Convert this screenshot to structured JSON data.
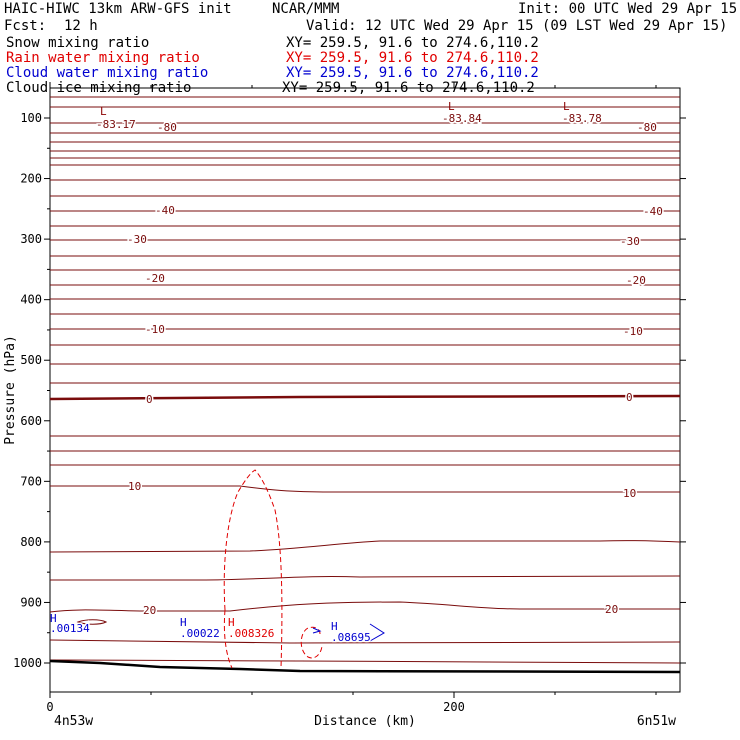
{
  "header": {
    "model": "HAIC-HIWC 13km ARW-GFS init",
    "org": "NCAR/MMM",
    "init": "Init: 00 UTC Wed 29 Apr 15",
    "fcst_label": "Fcst:",
    "fcst_value": "12 h",
    "valid": "Valid: 12 UTC Wed 29 Apr 15 (09 LST Wed 29 Apr 15)"
  },
  "fields": [
    {
      "name": "Snow mixing ratio",
      "xy": "XY= 259.5, 91.6 to 274.6,110.2",
      "color": "#000000"
    },
    {
      "name": "Rain water mixing ratio",
      "xy": "XY= 259.5, 91.6 to 274.6,110.2",
      "color": "#e00000"
    },
    {
      "name": "Cloud water mixing ratio",
      "xy": "XY= 259.5, 91.6 to 274.6,110.2",
      "color": "#0000d0"
    },
    {
      "name": "Cloud ice mixing ratio",
      "xy": "XY= 259.5, 91.6 to 274.6,110.2",
      "color": "#000000"
    }
  ],
  "chart_data": {
    "type": "line",
    "xlabel": "Distance (km)",
    "ylabel": "Pressure (hPa)",
    "x_ticks": [
      "0",
      "200"
    ],
    "x_tick_values": [
      0,
      200
    ],
    "y_ticks": [
      "100",
      "200",
      "300",
      "400",
      "500",
      "600",
      "700",
      "800",
      "900",
      "1000"
    ],
    "y_tick_values": [
      100,
      200,
      300,
      400,
      500,
      600,
      700,
      800,
      900,
      1000
    ],
    "ylim": [
      1050,
      50
    ],
    "xlim": [
      0,
      310
    ],
    "left_location": "4n53w",
    "right_location": "6n51w",
    "temperature_contours_labeled": [
      {
        "label": "-83.17"
      },
      {
        "label": "-80"
      },
      {
        "label": "-83.84"
      },
      {
        "label": "-83.78"
      },
      {
        "label": "-40"
      },
      {
        "label": "-30"
      },
      {
        "label": "-20"
      },
      {
        "label": "-10"
      },
      {
        "label": "0"
      },
      {
        "label": "10"
      },
      {
        "label": "20"
      }
    ],
    "annotations": [
      {
        "text": "L",
        "color": "#8b0000"
      },
      {
        "text": "L",
        "color": "#8b0000"
      },
      {
        "text": "L",
        "color": "#8b0000"
      },
      {
        "text": "H",
        "color": "#0000d0"
      },
      {
        "text": ".00134",
        "color": "#0000d0"
      },
      {
        "text": "H",
        "color": "#0000d0"
      },
      {
        "text": ".00022",
        "color": "#0000d0"
      },
      {
        "text": "H",
        "color": "#e00000"
      },
      {
        "text": ".008326",
        "color": "#e00000"
      },
      {
        "text": "H",
        "color": "#0000d0"
      },
      {
        "text": ".08695",
        "color": "#0000d0"
      }
    ],
    "contour_color": "#7a0c0c",
    "grid": false
  }
}
